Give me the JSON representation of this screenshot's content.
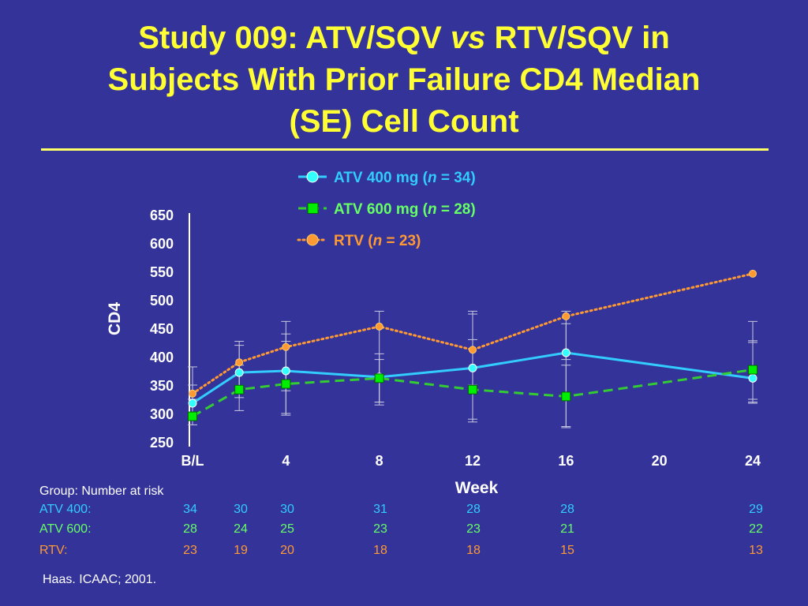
{
  "slide": {
    "title_line1_a": "Study 009:  ATV/SQV ",
    "title_line1_b": "vs",
    "title_line1_c": " RTV/SQV in",
    "title_line2": "Subjects With Prior Failure CD4 Median",
    "title_line3": "(SE) Cell Count",
    "citation": "Haas.  ICAAC; 2001."
  },
  "colors": {
    "background": "#333399",
    "title": "#ffff33",
    "atv400": "#33ccff",
    "atv600": "#33cc33",
    "rtv": "#ff9933",
    "axis": "#ffffff"
  },
  "chart_data": {
    "type": "line",
    "title": "",
    "xlabel": "Week",
    "ylabel": "CD4",
    "x_ticks": [
      "B/L",
      "4",
      "8",
      "12",
      "16",
      "20",
      "24"
    ],
    "x_tick_values": [
      0,
      4,
      8,
      12,
      16,
      20,
      24
    ],
    "xlim": [
      0,
      24
    ],
    "y_ticks": [
      250,
      300,
      350,
      400,
      450,
      500,
      550,
      600,
      650
    ],
    "ylim": [
      250,
      650
    ],
    "grid": false,
    "legend_position": "top",
    "series": [
      {
        "name": "ATV 400 mg",
        "legend_prefix": "ATV 400 mg (",
        "legend_n": "n",
        "legend_suffix": " = 34)",
        "style": "solid",
        "marker": "circle",
        "x": [
          0,
          2,
          4,
          8,
          12,
          16,
          24
        ],
        "y": [
          318,
          372,
          375,
          364,
          380,
          407,
          362
        ],
        "err_low": [
          290,
          328,
          297,
          320,
          285,
          277,
          318
        ],
        "err_high": [
          350,
          420,
          462,
          405,
          475,
          458,
          428
        ]
      },
      {
        "name": "ATV 600 mg",
        "legend_prefix": "ATV 600 mg (",
        "legend_n": "n",
        "legend_suffix": " = 28)",
        "style": "dashed",
        "marker": "square",
        "x": [
          0,
          2,
          4,
          8,
          12,
          16,
          24
        ],
        "y": [
          295,
          342,
          352,
          362,
          342,
          330,
          377
        ],
        "err_low": [
          280,
          305,
          340,
          315,
          290,
          275,
          320
        ],
        "err_high": [
          325,
          385,
          440,
          395,
          430,
          385,
          425
        ]
      },
      {
        "name": "RTV",
        "legend_prefix": "RTV (",
        "legend_n": "n",
        "legend_suffix": " = 23)",
        "style": "dotted",
        "marker": "circle",
        "x": [
          0,
          2,
          4,
          8,
          12,
          16,
          24
        ],
        "y": [
          335,
          390,
          417,
          453,
          412,
          471,
          546
        ],
        "err_low": [
          300,
          345,
          300,
          320,
          350,
          395,
          325
        ],
        "err_high": [
          382,
          427,
          427,
          480,
          480,
          480,
          462
        ]
      }
    ],
    "risk_table": {
      "header": "Group:  Number at risk",
      "columns": [
        "0",
        "2",
        "4",
        "8",
        "12",
        "16",
        "24"
      ],
      "rows": [
        {
          "label": "ATV 400:",
          "values": [
            "34",
            "30",
            "30",
            "31",
            "28",
            "28",
            "29"
          ]
        },
        {
          "label": "ATV 600:",
          "values": [
            "28",
            "24",
            "25",
            "23",
            "23",
            "21",
            "22"
          ]
        },
        {
          "label": "RTV:",
          "values": [
            "23",
            "19",
            "20",
            "18",
            "18",
            "15",
            "13"
          ]
        }
      ]
    }
  }
}
